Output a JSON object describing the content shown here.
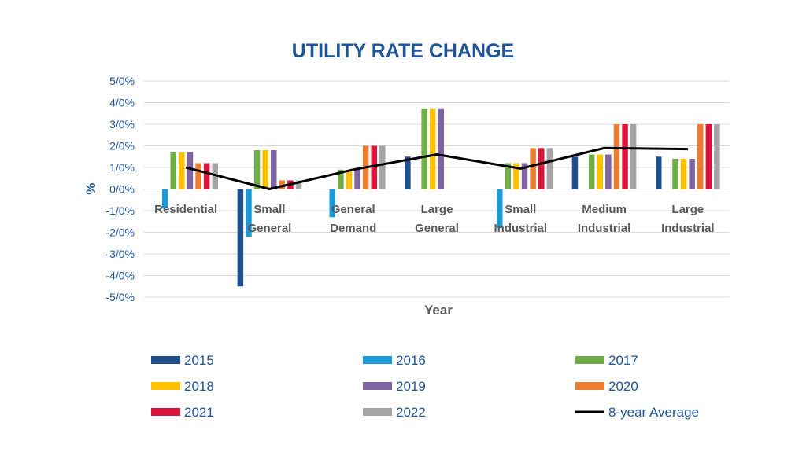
{
  "chart_data": {
    "type": "bar",
    "title": "UTILITY RATE CHANGE",
    "xlabel": "Year",
    "ylabel": "%",
    "ylim": [
      -5,
      5
    ],
    "yticks": [
      "5/0%",
      "4/0%",
      "3/0%",
      "2/0%",
      "1/0%",
      "0/0%",
      "-1/0%",
      "-2/0%",
      "-3/0%",
      "-4/0%",
      "-5/0%"
    ],
    "grid": true,
    "legend_position": "bottom",
    "categories": [
      [
        "Residential"
      ],
      [
        "Small",
        "General"
      ],
      [
        "General",
        "Demand"
      ],
      [
        "Large",
        "General"
      ],
      [
        "Small",
        "Industrial"
      ],
      [
        "Medium",
        "Industrial"
      ],
      [
        "Large",
        "Industrial"
      ]
    ],
    "series": [
      {
        "name": "2015",
        "color": "#1f4e8c",
        "values": [
          0,
          -4.5,
          0,
          1.5,
          0,
          1.5,
          1.5
        ]
      },
      {
        "name": "2016",
        "color": "#1a9ad6",
        "values": [
          -0.9,
          -2.2,
          -1.3,
          0,
          -1.8,
          0,
          0
        ]
      },
      {
        "name": "2017",
        "color": "#70ad47",
        "values": [
          1.7,
          1.8,
          0.9,
          3.7,
          1.2,
          1.6,
          1.4
        ]
      },
      {
        "name": "2018",
        "color": "#ffc000",
        "values": [
          1.7,
          1.8,
          0.9,
          3.7,
          1.2,
          1.6,
          1.4
        ]
      },
      {
        "name": "2019",
        "color": "#8064a2",
        "values": [
          1.7,
          1.8,
          0.9,
          3.7,
          1.2,
          1.6,
          1.4
        ]
      },
      {
        "name": "2020",
        "color": "#ed7d31",
        "values": [
          1.2,
          0.4,
          2.0,
          0,
          1.9,
          3.0,
          3.0
        ]
      },
      {
        "name": "2021",
        "color": "#dc143c",
        "values": [
          1.2,
          0.4,
          2.0,
          0,
          1.9,
          3.0,
          3.0
        ]
      },
      {
        "name": "2022",
        "color": "#a5a5a5",
        "values": [
          1.2,
          0.4,
          2.0,
          0,
          1.9,
          3.0,
          3.0
        ]
      }
    ],
    "line_series": {
      "name": "8-year Average",
      "color": "#000000",
      "values": [
        1.0,
        0.0,
        0.9,
        1.6,
        0.95,
        1.9,
        1.85
      ]
    }
  }
}
